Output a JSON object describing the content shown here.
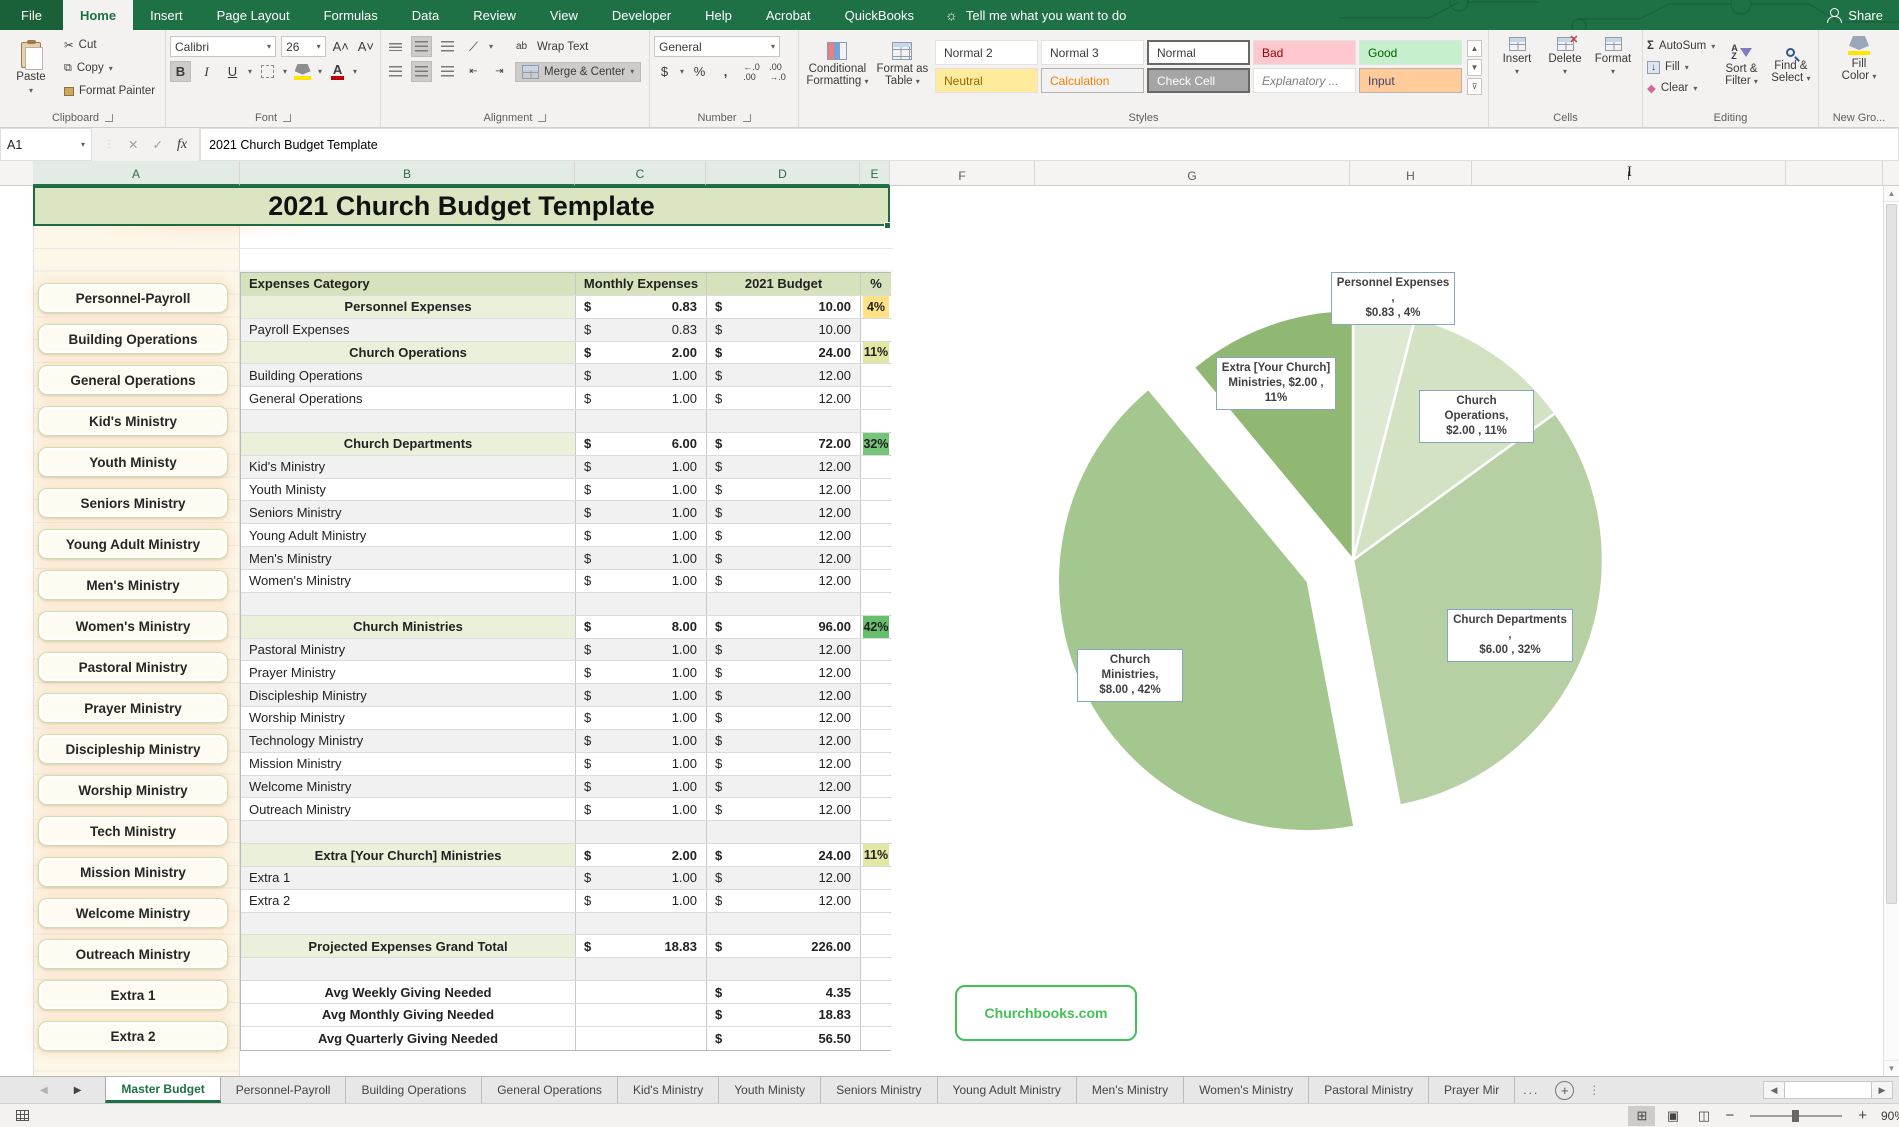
{
  "ribbon": {
    "tabs": [
      "File",
      "Home",
      "Insert",
      "Page Layout",
      "Formulas",
      "Data",
      "Review",
      "View",
      "Developer",
      "Help",
      "Acrobat",
      "QuickBooks"
    ],
    "active_tab": "Home",
    "tell_me": "Tell me what you want to do",
    "share": "Share",
    "clipboard": {
      "label": "Clipboard",
      "paste": "Paste",
      "cut": "Cut",
      "copy": "Copy",
      "format_painter": "Format Painter"
    },
    "font": {
      "label": "Font",
      "name": "Calibri",
      "size": "26"
    },
    "alignment": {
      "label": "Alignment",
      "wrap": "Wrap Text",
      "merge": "Merge & Center"
    },
    "number": {
      "label": "Number",
      "format": "General"
    },
    "styles": {
      "label": "Styles",
      "conditional_1": "Conditional",
      "conditional_2": "Formatting",
      "format_table_1": "Format as",
      "format_table_2": "Table",
      "gallery": [
        {
          "t": "Normal 2",
          "c": "plain"
        },
        {
          "t": "Normal 3",
          "c": "plain"
        },
        {
          "t": "Normal",
          "c": "selected"
        },
        {
          "t": "Bad",
          "c": "bad"
        },
        {
          "t": "Good",
          "c": "good"
        },
        {
          "t": "Neutral",
          "c": "neutral"
        },
        {
          "t": "Calculation",
          "c": "calc"
        },
        {
          "t": "Check Cell",
          "c": "check"
        },
        {
          "t": "Explanatory ...",
          "c": "expl"
        },
        {
          "t": "Input",
          "c": "input"
        }
      ]
    },
    "cells": {
      "label": "Cells",
      "items": [
        "Insert",
        "Delete",
        "Format"
      ]
    },
    "editing": {
      "label": "Editing",
      "autosum": "AutoSum",
      "fill": "Fill",
      "clear": "Clear",
      "sort_1": "Sort &",
      "sort_2": "Filter",
      "find_1": "Find &",
      "find_2": "Select"
    },
    "newgroup": {
      "label": "New Gro...",
      "fill_color_1": "Fill",
      "fill_color_2": "Color"
    }
  },
  "formula_bar": {
    "name_box": "A1",
    "formula": "2021 Church Budget Template"
  },
  "grid": {
    "columns": [
      "A",
      "B",
      "C",
      "D",
      "E",
      "F",
      "G",
      "H",
      "I"
    ],
    "selected_columns": 5,
    "row_count": 39
  },
  "sheet": {
    "title": "2021 Church Budget Template",
    "nav_buttons": [
      "Personnel-Payroll",
      "Building Operations",
      "General Operations",
      "Kid's Ministry",
      "Youth Ministy",
      "Seniors Ministry",
      "Young Adult Ministry",
      "Men's Ministry",
      "Women's Ministry",
      "Pastoral Ministry",
      "Prayer Ministry",
      "Discipleship Ministry",
      "Worship Ministry",
      "Tech Ministry",
      "Mission Ministry",
      "Welcome Ministry",
      "Outreach Ministry",
      "Extra 1",
      "Extra 2"
    ],
    "table": {
      "headers": {
        "category": "Expenses Category",
        "monthly": "Monthly Expenses",
        "budget": "2021 Budget",
        "pct": "%"
      },
      "currency": "$",
      "pct_colors": {
        "p4": "#ffe285",
        "p11": "#e2e8a3",
        "p32": "#74c47a",
        "p42": "#67bf6e"
      },
      "rows": [
        {
          "r": 5,
          "type": "section",
          "label": "Personnel Expenses",
          "m": "0.83",
          "b": "10.00",
          "p": "4%",
          "pk": "p4"
        },
        {
          "r": 6,
          "type": "detail",
          "label": "Payroll Expenses",
          "m": "0.83",
          "b": "10.00"
        },
        {
          "r": 7,
          "type": "section",
          "label": "Church Operations",
          "m": "2.00",
          "b": "24.00",
          "p": "11%",
          "pk": "p11"
        },
        {
          "r": 8,
          "type": "detail",
          "label": "Building Operations",
          "m": "1.00",
          "b": "12.00"
        },
        {
          "r": 9,
          "type": "detail",
          "label": "General Operations",
          "m": "1.00",
          "b": "12.00"
        },
        {
          "r": 10,
          "type": "blank"
        },
        {
          "r": 11,
          "type": "section",
          "label": "Church Departments",
          "m": "6.00",
          "b": "72.00",
          "p": "32%",
          "pk": "p32"
        },
        {
          "r": 12,
          "type": "detail",
          "label": "Kid's Ministry",
          "m": "1.00",
          "b": "12.00"
        },
        {
          "r": 13,
          "type": "detail",
          "label": "Youth Ministy",
          "m": "1.00",
          "b": "12.00"
        },
        {
          "r": 14,
          "type": "detail",
          "label": "Seniors Ministry",
          "m": "1.00",
          "b": "12.00"
        },
        {
          "r": 15,
          "type": "detail",
          "label": "Young Adult Ministry",
          "m": "1.00",
          "b": "12.00"
        },
        {
          "r": 16,
          "type": "detail",
          "label": "Men's Ministry",
          "m": "1.00",
          "b": "12.00"
        },
        {
          "r": 17,
          "type": "detail",
          "label": "Women's Ministry",
          "m": "1.00",
          "b": "12.00"
        },
        {
          "r": 18,
          "type": "blank"
        },
        {
          "r": 19,
          "type": "section",
          "label": "Church Ministries",
          "m": "8.00",
          "b": "96.00",
          "p": "42%",
          "pk": "p42"
        },
        {
          "r": 20,
          "type": "detail",
          "label": "Pastoral Ministry",
          "m": "1.00",
          "b": "12.00"
        },
        {
          "r": 21,
          "type": "detail",
          "label": "Prayer Ministry",
          "m": "1.00",
          "b": "12.00"
        },
        {
          "r": 22,
          "type": "detail",
          "label": "Discipleship Ministry",
          "m": "1.00",
          "b": "12.00"
        },
        {
          "r": 23,
          "type": "detail",
          "label": "Worship Ministry",
          "m": "1.00",
          "b": "12.00"
        },
        {
          "r": 24,
          "type": "detail",
          "label": "Technology Ministry",
          "m": "1.00",
          "b": "12.00"
        },
        {
          "r": 25,
          "type": "detail",
          "label": "Mission Ministry",
          "m": "1.00",
          "b": "12.00"
        },
        {
          "r": 26,
          "type": "detail",
          "label": "Welcome Ministry",
          "m": "1.00",
          "b": "12.00"
        },
        {
          "r": 27,
          "type": "detail",
          "label": "Outreach Ministry",
          "m": "1.00",
          "b": "12.00"
        },
        {
          "r": 28,
          "type": "blank"
        },
        {
          "r": 29,
          "type": "section",
          "label": "Extra [Your Church] Ministries",
          "m": "2.00",
          "b": "24.00",
          "p": "11%",
          "pk": "p11"
        },
        {
          "r": 30,
          "type": "detail",
          "label": "Extra 1",
          "m": "1.00",
          "b": "12.00"
        },
        {
          "r": 31,
          "type": "detail",
          "label": "Extra 2",
          "m": "1.00",
          "b": "12.00"
        },
        {
          "r": 32,
          "type": "blank"
        },
        {
          "r": 33,
          "type": "total",
          "label": "Projected Expenses Grand Total",
          "m": "18.83",
          "b": "226.00"
        },
        {
          "r": 34,
          "type": "blank"
        },
        {
          "r": 35,
          "type": "avg",
          "label": "Avg Weekly Giving Needed",
          "b": "4.35"
        },
        {
          "r": 36,
          "type": "avg",
          "label": "Avg Monthly Giving Needed",
          "b": "18.83"
        },
        {
          "r": 37,
          "type": "avg",
          "label": "Avg Quarterly Giving Needed",
          "b": "56.50"
        }
      ]
    },
    "churchbooks": "Churchbooks.com"
  },
  "chart_data": {
    "type": "pie",
    "title": "",
    "categories": [
      "Personnel Expenses",
      "Church Operations",
      "Church Departments",
      "Church Ministries",
      "Extra [Your Church] Ministries"
    ],
    "values": [
      4,
      11,
      32,
      42,
      11
    ],
    "amounts": [
      "$0.83",
      "$2.00",
      "$6.00",
      "$8.00",
      "$2.00"
    ],
    "colors": [
      "#dde9d3",
      "#d2e2c2",
      "#b6cfa3",
      "#a4c68f",
      "#90b873"
    ],
    "exploded_index": 3,
    "start_angle_deg": 0,
    "legend": "none",
    "label_lines": [
      [
        "Personnel Expenses ,",
        "$0.83 , 4%"
      ],
      [
        "Church Operations,",
        "$2.00 , 11%"
      ],
      [
        "Church Departments ,",
        "$6.00 , 32%"
      ],
      [
        "Church Ministries,",
        "$8.00 , 42%"
      ],
      [
        "Extra [Your Church]",
        "Ministries, $2.00 ,",
        "11%"
      ]
    ]
  },
  "sheet_tabs": {
    "active": "Master Budget",
    "tabs": [
      "Master Budget",
      "Personnel-Payroll",
      "Building Operations",
      "General Operations",
      "Kid's Ministry",
      "Youth Ministy",
      "Seniors Ministry",
      "Young Adult Ministry",
      "Men's Ministry",
      "Women's Ministry",
      "Pastoral Ministry",
      "Prayer Mir"
    ],
    "overflow": "..."
  },
  "status_bar": {
    "zoom_text": "90%"
  }
}
